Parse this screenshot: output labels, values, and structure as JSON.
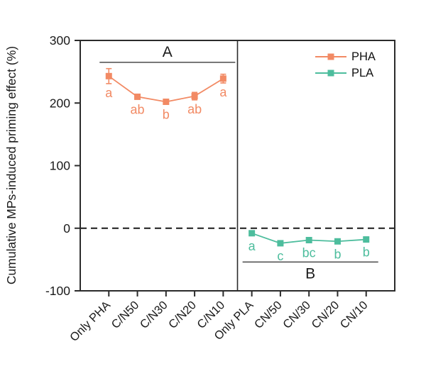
{
  "figure": {
    "background": "#ffffff",
    "frame_color": "#2b2b2b"
  },
  "chart_data": {
    "type": "line",
    "title": "",
    "xlabel": "",
    "ylabel": "Cumulative MPs-induced priming effect (%)",
    "ylim": [
      -100,
      300
    ],
    "yticks": [
      300,
      200,
      100,
      0,
      -100
    ],
    "categories": [
      "Only PHA",
      "C/N50",
      "C/N30",
      "C/N20",
      "C/N10",
      "Only PLA",
      "CN/50",
      "CN/30",
      "CN/20",
      "CN/10"
    ],
    "zero_line": {
      "value": 0,
      "style": "dashed",
      "color": "#1a1a1a"
    },
    "panel_divider_between_categories": [
      4,
      5
    ],
    "series": [
      {
        "name": "PHA",
        "color": "#F28A64",
        "category_indices": [
          0,
          1,
          2,
          3,
          4
        ],
        "values": [
          243,
          210,
          202,
          211,
          239
        ],
        "errors": [
          12,
          3,
          3,
          6,
          7
        ],
        "sig_letters": [
          "a",
          "ab",
          "b",
          "ab",
          "a"
        ]
      },
      {
        "name": "PLA",
        "color": "#4DBD9D",
        "category_indices": [
          5,
          6,
          7,
          8,
          9
        ],
        "values": [
          -8,
          -24,
          -19,
          -21,
          -18
        ],
        "errors": [
          3,
          2,
          2,
          3,
          4
        ],
        "sig_letters": [
          "a",
          "c",
          "bc",
          "b",
          "b"
        ]
      }
    ],
    "group_annotations": [
      {
        "label": "A",
        "line_y": 265,
        "cat_start": 0,
        "cat_end": 4,
        "label_position": "above",
        "line_color": "#4a4a4a"
      },
      {
        "label": "B",
        "line_y": -54,
        "cat_start": 5,
        "cat_end": 9,
        "label_position": "below",
        "line_color": "#4a4a4a"
      }
    ],
    "legend": {
      "position": "top-right",
      "entries": [
        "PHA",
        "PLA"
      ]
    }
  }
}
